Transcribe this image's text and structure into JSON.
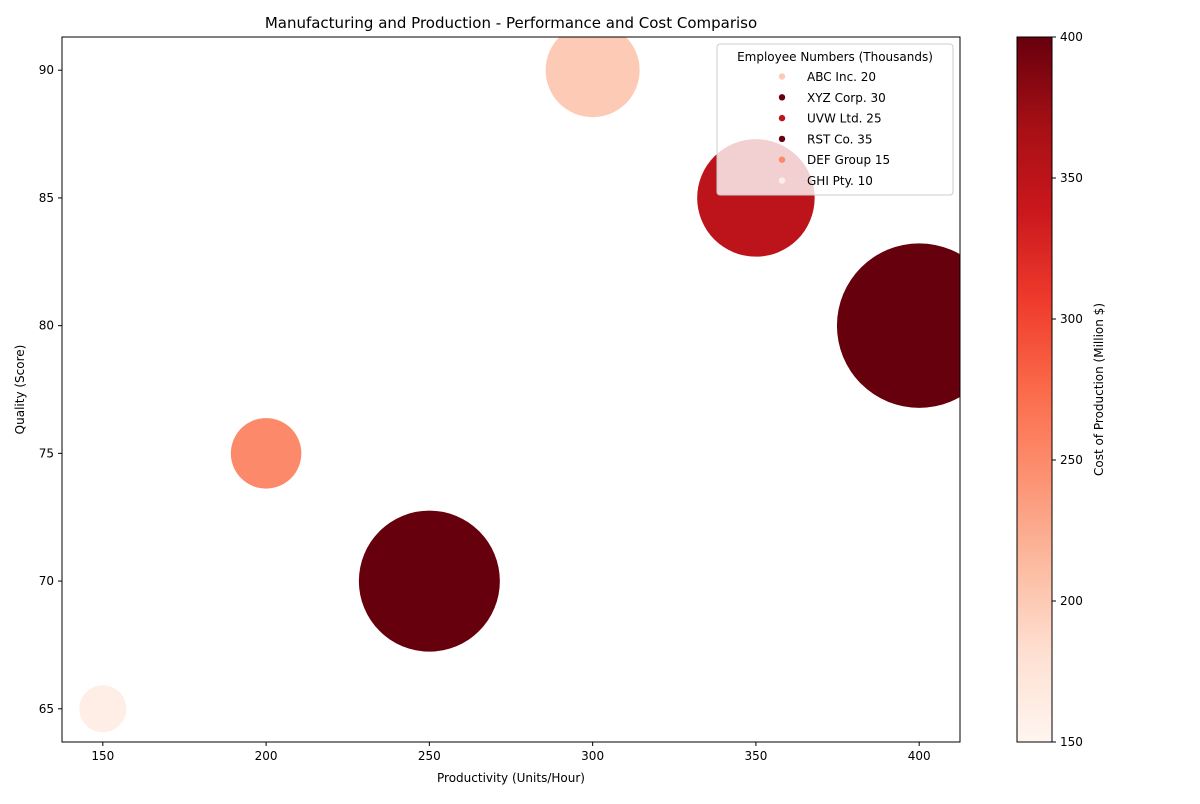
{
  "chart_data": {
    "type": "scatter",
    "title": "Manufacturing and Production - Performance and Cost Compariso",
    "xlabel": "Productivity (Units/Hour)",
    "ylabel": "Quality (Score)",
    "xlim": [
      137.5,
      412.5
    ],
    "ylim": [
      63.7,
      91.3
    ],
    "xticks": [
      150,
      200,
      250,
      300,
      350,
      400
    ],
    "yticks": [
      65,
      70,
      75,
      80,
      85,
      90
    ],
    "size_variable": "Employee Numbers (Thousands)",
    "color_variable": "Cost of Production (Million $)",
    "colorbar": {
      "label": "Cost of Production (Million $)",
      "range": [
        150,
        400
      ],
      "ticks": [
        150,
        200,
        250,
        300,
        350,
        400
      ],
      "colormap": [
        "#fff5f0",
        "#fee0d2",
        "#fcbba1",
        "#fc9272",
        "#fb6a4a",
        "#ef3b2c",
        "#cb181d",
        "#a50f15",
        "#67000d"
      ]
    },
    "legend": {
      "title": "Employee Numbers (Thousands)",
      "position": "upper-right",
      "entries": [
        "ABC Inc. 20",
        "XYZ Corp. 30",
        "UVW Ltd. 25",
        "RST Co. 35",
        "DEF Group 15",
        "GHI Pty. 10"
      ]
    },
    "points": [
      {
        "name": "ABC Inc.",
        "x": 300,
        "y": 90,
        "employees": 20,
        "cost": 200
      },
      {
        "name": "XYZ Corp.",
        "x": 250,
        "y": 70,
        "employees": 30,
        "cost": 400
      },
      {
        "name": "UVW Ltd.",
        "x": 350,
        "y": 85,
        "employees": 25,
        "cost": 350
      },
      {
        "name": "RST Co.",
        "x": 400,
        "y": 80,
        "employees": 35,
        "cost": 400
      },
      {
        "name": "DEF Group",
        "x": 200,
        "y": 75,
        "employees": 15,
        "cost": 250
      },
      {
        "name": "GHI Pty.",
        "x": 150,
        "y": 65,
        "employees": 10,
        "cost": 160
      }
    ]
  }
}
